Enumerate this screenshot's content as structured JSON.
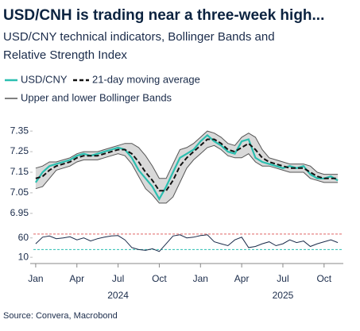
{
  "chart_data": [
    {
      "type": "line",
      "title": "USD/CNH is trading near a three-week high...",
      "subtitle": [
        "USD/CNY technical indicators, Bollinger Bands and",
        "Relative Strength Index"
      ],
      "xlim": [
        -0.4,
        22.4
      ],
      "x": [
        0,
        0.5,
        1,
        1.5,
        2,
        2.5,
        3,
        3.5,
        4,
        4.5,
        5,
        5.5,
        6,
        6.5,
        7,
        7.5,
        8,
        8.5,
        9,
        9.5,
        10,
        10.5,
        11,
        11.5,
        12,
        12.5,
        13,
        13.5,
        14,
        14.5,
        15,
        15.5,
        16,
        16.5,
        17,
        17.5,
        18,
        18.5,
        19,
        19.5,
        20,
        20.5,
        21,
        21.5,
        22
      ],
      "ylim": [
        6.93,
        7.42
      ],
      "yticks": [
        6.95,
        7.05,
        7.15,
        7.25,
        7.35
      ],
      "series": [
        {
          "name": "USD/CNY",
          "color": "#2bbfb0",
          "dashed": false,
          "values": [
            7.1,
            7.15,
            7.18,
            7.19,
            7.2,
            7.21,
            7.23,
            7.24,
            7.23,
            7.24,
            7.25,
            7.26,
            7.27,
            7.26,
            7.22,
            7.16,
            7.12,
            7.08,
            7.02,
            7.08,
            7.15,
            7.22,
            7.24,
            7.26,
            7.3,
            7.33,
            7.3,
            7.28,
            7.25,
            7.24,
            7.3,
            7.31,
            7.22,
            7.2,
            7.19,
            7.18,
            7.17,
            7.18,
            7.17,
            7.18,
            7.14,
            7.12,
            7.12,
            7.13,
            7.11
          ]
        },
        {
          "name": "21-day moving average",
          "color": "#111111",
          "dashed": true,
          "values": [
            7.12,
            7.13,
            7.16,
            7.18,
            7.19,
            7.2,
            7.22,
            7.23,
            7.23,
            7.23,
            7.24,
            7.25,
            7.26,
            7.26,
            7.24,
            7.2,
            7.15,
            7.11,
            7.06,
            7.06,
            7.11,
            7.18,
            7.22,
            7.25,
            7.28,
            7.31,
            7.31,
            7.29,
            7.26,
            7.25,
            7.27,
            7.29,
            7.26,
            7.22,
            7.2,
            7.19,
            7.18,
            7.17,
            7.17,
            7.17,
            7.15,
            7.13,
            7.12,
            7.12,
            7.12
          ]
        }
      ],
      "bands": {
        "name": "Upper and lower Bollinger Bands",
        "color": "#555555",
        "fill": "#d9d9d9",
        "upper": [
          7.17,
          7.18,
          7.2,
          7.2,
          7.21,
          7.22,
          7.24,
          7.25,
          7.25,
          7.25,
          7.26,
          7.27,
          7.28,
          7.29,
          7.29,
          7.27,
          7.23,
          7.18,
          7.12,
          7.12,
          7.19,
          7.26,
          7.27,
          7.29,
          7.32,
          7.35,
          7.34,
          7.32,
          7.29,
          7.28,
          7.32,
          7.34,
          7.32,
          7.26,
          7.22,
          7.21,
          7.2,
          7.19,
          7.19,
          7.19,
          7.18,
          7.15,
          7.14,
          7.14,
          7.14
        ],
        "lower": [
          7.07,
          7.08,
          7.12,
          7.16,
          7.17,
          7.18,
          7.2,
          7.21,
          7.21,
          7.21,
          7.22,
          7.23,
          7.24,
          7.23,
          7.19,
          7.13,
          7.07,
          7.04,
          7.0,
          7.0,
          7.03,
          7.1,
          7.17,
          7.21,
          7.24,
          7.27,
          7.28,
          7.26,
          7.23,
          7.22,
          7.22,
          7.24,
          7.2,
          7.18,
          7.18,
          7.17,
          7.16,
          7.15,
          7.15,
          7.15,
          7.12,
          7.11,
          7.1,
          7.1,
          7.1
        ]
      }
    },
    {
      "type": "line",
      "xlim": [
        -0.4,
        22.4
      ],
      "x": [
        0,
        0.5,
        1,
        1.5,
        2,
        2.5,
        3,
        3.5,
        4,
        4.5,
        5,
        5.5,
        6,
        6.5,
        7,
        7.5,
        8,
        8.5,
        9,
        9.5,
        10,
        10.5,
        11,
        11.5,
        12,
        12.5,
        13,
        13.5,
        14,
        14.5,
        15,
        15.5,
        16,
        16.5,
        17,
        17.5,
        18,
        18.5,
        19,
        19.5,
        20,
        20.5,
        21,
        21.5,
        22
      ],
      "xticks": [
        {
          "value": 0,
          "label": "Jan"
        },
        {
          "value": 3,
          "label": "Apr"
        },
        {
          "value": 6,
          "label": "Jul"
        },
        {
          "value": 9,
          "label": "Oct"
        },
        {
          "value": 12,
          "label": "Jan"
        },
        {
          "value": 15,
          "label": "Apr"
        },
        {
          "value": 18,
          "label": "Jul"
        },
        {
          "value": 21,
          "label": "Oct"
        }
      ],
      "year_labels": [
        {
          "value": 6,
          "label": "2024"
        },
        {
          "value": 18,
          "label": "2025"
        }
      ],
      "ylim": [
        -2,
        82
      ],
      "yticks": [
        10,
        60
      ],
      "reference_lines": [
        {
          "value": 70,
          "color": "#e06666"
        },
        {
          "value": 30,
          "color": "#2bbfb0"
        }
      ],
      "series": [
        {
          "color": "#1a2b4a",
          "values": [
            45,
            62,
            65,
            58,
            60,
            63,
            55,
            60,
            52,
            58,
            62,
            65,
            66,
            55,
            35,
            30,
            28,
            32,
            25,
            45,
            65,
            68,
            60,
            62,
            66,
            68,
            50,
            45,
            40,
            55,
            62,
            35,
            38,
            45,
            50,
            40,
            45,
            55,
            48,
            52,
            38,
            45,
            50,
            55,
            48
          ]
        }
      ]
    }
  ],
  "source": "Source: Convera, Macrobond"
}
